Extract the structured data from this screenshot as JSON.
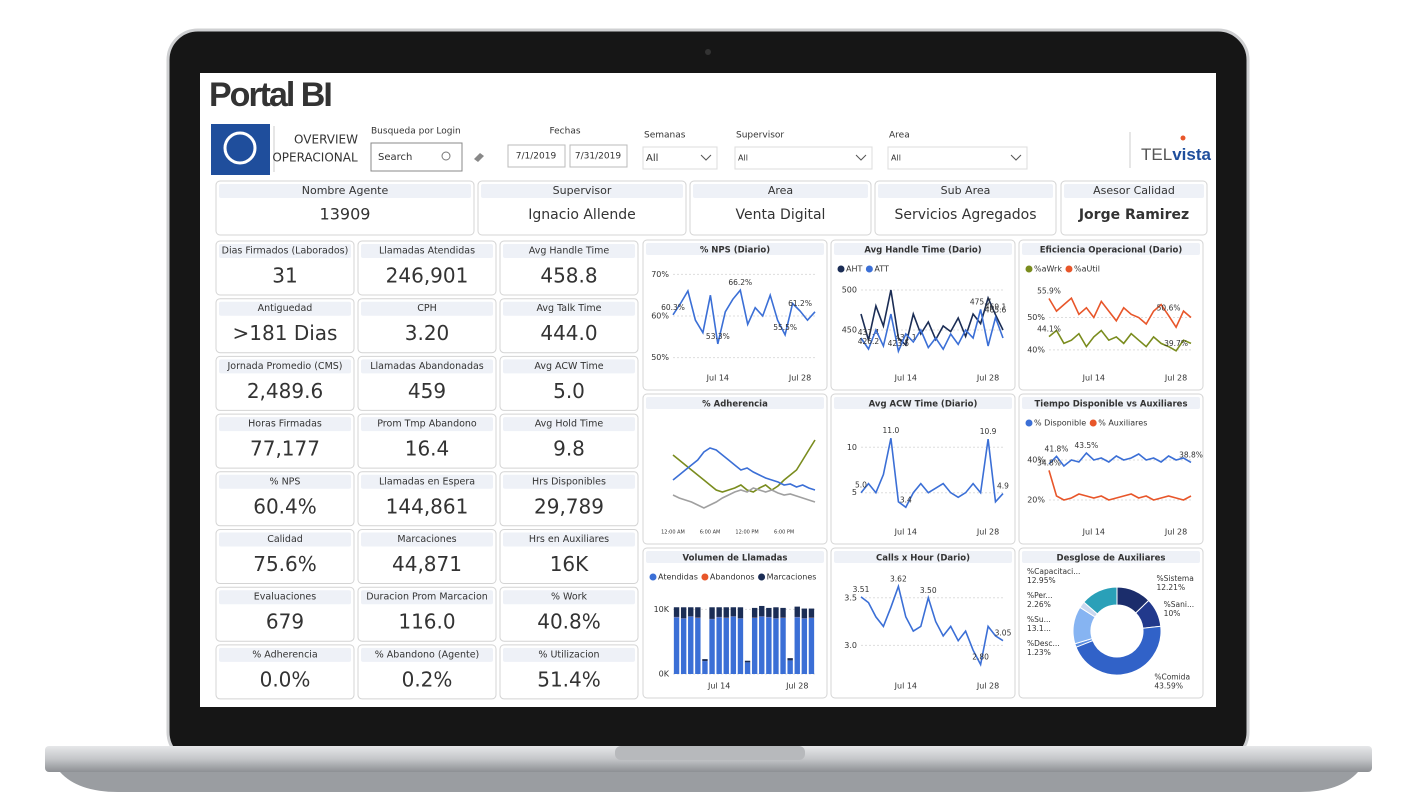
{
  "header": {
    "title": "Portal BI",
    "logo_line1": "OVERVIEW",
    "logo_line2": "OPERACIONAL",
    "search_label": "Busqueda por Login",
    "search_placeholder": "Search",
    "dates_label": "Fechas",
    "date_from": "7/1/2019",
    "date_to": "7/31/2019",
    "weeks_label": "Semanas",
    "weeks_value": "All",
    "supervisor_label": "Supervisor",
    "supervisor_value": "All",
    "area_label": "Area",
    "area_value": "All",
    "brand_a": "TEL",
    "brand_b": "vista"
  },
  "info_cards": [
    {
      "label": "Nombre Agente",
      "value": "13909"
    },
    {
      "label": "Supervisor",
      "value": "Ignacio Allende"
    },
    {
      "label": "Area",
      "value": "Venta Digital"
    },
    {
      "label": "Sub Area",
      "value": "Servicios Agregados"
    },
    {
      "label": "Asesor Calidad",
      "value": "Jorge Ramirez"
    }
  ],
  "kpis": [
    {
      "label": "Dias Firmados (Laborados)",
      "value": "31"
    },
    {
      "label": "Llamadas Atendidas",
      "value": "246,901"
    },
    {
      "label": "Avg Handle Time",
      "value": "458.8"
    },
    {
      "label": "Antiguedad",
      "value": ">181 Dias"
    },
    {
      "label": "CPH",
      "value": "3.20"
    },
    {
      "label": "Avg Talk Time",
      "value": "444.0"
    },
    {
      "label": "Jornada Promedio (CMS)",
      "value": "2,489.6"
    },
    {
      "label": "Llamadas Abandonadas",
      "value": "459"
    },
    {
      "label": "Avg ACW Time",
      "value": "5.0"
    },
    {
      "label": "Horas Firmadas",
      "value": "77,177"
    },
    {
      "label": "Prom Tmp Abandono",
      "value": "16.4"
    },
    {
      "label": "Avg Hold Time",
      "value": "9.8"
    },
    {
      "label": "% NPS",
      "value": "60.4%"
    },
    {
      "label": "Llamadas en Espera",
      "value": "144,861"
    },
    {
      "label": "Hrs Disponibles",
      "value": "29,789"
    },
    {
      "label": "Calidad",
      "value": "75.6%"
    },
    {
      "label": "Marcaciones",
      "value": "44,871"
    },
    {
      "label": "Hrs en Auxiliares",
      "value": "16K"
    },
    {
      "label": "Evaluaciones",
      "value": "679"
    },
    {
      "label": "Duracion Prom Marcacion",
      "value": "116.0"
    },
    {
      "label": "% Work",
      "value": "40.8%"
    },
    {
      "label": "% Adherencia",
      "value": "0.0%"
    },
    {
      "label": "% Abandono (Agente)",
      "value": "0.2%"
    },
    {
      "label": "% Utilizacion",
      "value": "51.4%"
    }
  ],
  "charts": [
    {
      "type": "line",
      "title": "% NPS (Diario)",
      "ylim": [
        48,
        72
      ],
      "yticks": [
        {
          "value": 50,
          "label": "50%"
        },
        {
          "value": 60,
          "label": "60%"
        },
        {
          "value": 70,
          "label": "70%"
        }
      ],
      "categories": [
        null,
        null,
        null,
        null,
        null,
        null,
        "Jul 14",
        null,
        null,
        null,
        null,
        null,
        null,
        null,
        null,
        null,
        null,
        "Jul 28",
        null,
        null
      ],
      "series": [
        {
          "color": "#3b6fd6",
          "values": [
            60.3,
            63,
            66,
            59,
            56,
            65,
            53.3,
            61,
            64,
            66.2,
            58,
            62,
            60,
            65,
            59,
            55.5,
            63,
            61.2,
            59,
            61
          ],
          "value_labels": [
            "60.3%",
            null,
            null,
            null,
            null,
            null,
            "53.3%",
            null,
            null,
            "66.2%",
            null,
            null,
            null,
            null,
            null,
            "55.5%",
            null,
            "61.2%",
            null,
            null
          ]
        }
      ]
    },
    {
      "type": "line",
      "title": "Avg Handle Time (Dario)",
      "ylim": [
        405,
        510
      ],
      "yticks": [
        450,
        500
      ],
      "categories": [
        null,
        null,
        null,
        null,
        null,
        null,
        "Jul 14",
        null,
        null,
        null,
        null,
        null,
        null,
        null,
        null,
        null,
        null,
        "Jul 28",
        null,
        null
      ],
      "series": [
        {
          "name": "AHT",
          "color": "#1b2d55",
          "values": [
            470,
            437.4,
            480,
            455,
            500,
            440,
            431.1,
            470,
            445,
            460,
            438,
            455,
            448,
            465,
            442,
            470,
            458,
            490,
            469.1,
            450
          ],
          "value_labels": [
            null,
            "437.4",
            null,
            null,
            null,
            null,
            "431.1",
            null,
            null,
            null,
            null,
            null,
            null,
            null,
            null,
            null,
            null,
            null,
            "469.1",
            null
          ]
        },
        {
          "name": "ATT",
          "color": "#3b6fd6",
          "values": [
            440,
            426.2,
            450,
            430,
            470,
            423.5,
            445,
            435,
            450,
            428,
            440,
            426,
            445,
            432,
            450,
            440,
            475.7,
            430,
            465.6,
            440
          ],
          "value_labels": [
            null,
            "426.2",
            null,
            null,
            null,
            "423.5",
            null,
            null,
            null,
            null,
            null,
            null,
            null,
            null,
            null,
            null,
            "475.7",
            null,
            "465.6",
            null
          ]
        }
      ]
    },
    {
      "type": "line",
      "title": "Eficiencia Operacional (Dario)",
      "ylim": [
        35,
        61
      ],
      "yticks": [
        {
          "value": 40,
          "label": "40%"
        },
        {
          "value": 50,
          "label": "50%"
        }
      ],
      "categories": [
        null,
        null,
        null,
        null,
        null,
        null,
        "Jul 14",
        null,
        null,
        null,
        null,
        null,
        null,
        null,
        null,
        null,
        null,
        "Jul 28",
        null,
        null
      ],
      "series": [
        {
          "name": "%aWrk",
          "color": "#7a8c1e",
          "values": [
            44.1,
            46,
            42,
            43,
            45,
            41,
            44,
            46,
            43,
            44,
            42,
            45,
            43,
            41,
            44,
            42,
            41,
            39.7,
            43,
            42
          ],
          "value_labels": [
            "44.1%",
            null,
            null,
            null,
            null,
            null,
            null,
            null,
            null,
            null,
            null,
            null,
            null,
            null,
            null,
            null,
            null,
            "39.7%",
            null,
            null
          ]
        },
        {
          "name": "%aUtil",
          "color": "#e8562a",
          "values": [
            55.9,
            52,
            54,
            56,
            51,
            53,
            50,
            55,
            52,
            49,
            53,
            51,
            50,
            48,
            52,
            54,
            50.6,
            47,
            52,
            50
          ],
          "value_labels": [
            "55.9%",
            null,
            null,
            null,
            null,
            null,
            null,
            null,
            null,
            null,
            null,
            null,
            null,
            null,
            null,
            null,
            "50.6%",
            null,
            null,
            null
          ]
        }
      ]
    },
    {
      "type": "line",
      "title": "% Adherencia",
      "ylim": [
        0,
        100
      ],
      "yticks": [],
      "categories": [
        "12:00 AM",
        null,
        null,
        null,
        null,
        null,
        "6:00 AM",
        null,
        null,
        null,
        null,
        null,
        "12:00 PM",
        null,
        null,
        null,
        null,
        null,
        "6:00 PM",
        null,
        null,
        null,
        null,
        null
      ],
      "series": [
        {
          "color": "#7a8c1e",
          "values": [
            65,
            60,
            55,
            50,
            45,
            40,
            35,
            30,
            28,
            30,
            32,
            35,
            30,
            28,
            32,
            35,
            30,
            34,
            40,
            45,
            50,
            60,
            70,
            80
          ]
        },
        {
          "color": "#3b6fd6",
          "values": [
            40,
            45,
            50,
            55,
            60,
            68,
            72,
            70,
            65,
            60,
            55,
            50,
            52,
            48,
            45,
            42,
            40,
            38,
            35,
            36,
            33,
            35,
            32,
            30
          ]
        },
        {
          "color": "#a0a0a0",
          "values": [
            25,
            22,
            20,
            18,
            15,
            12,
            15,
            18,
            22,
            25,
            28,
            30,
            28,
            32,
            30,
            28,
            30,
            27,
            25,
            26,
            24,
            22,
            20,
            18
          ]
        }
      ]
    },
    {
      "type": "line",
      "title": "Avg ACW Time (Diario)",
      "ylim": [
        2,
        13
      ],
      "yticks": [
        5,
        10
      ],
      "categories": [
        null,
        null,
        null,
        null,
        null,
        null,
        "Jul 14",
        null,
        null,
        null,
        null,
        null,
        null,
        null,
        null,
        null,
        null,
        "Jul 28",
        null,
        null
      ],
      "series": [
        {
          "color": "#3b6fd6",
          "values": [
            5.0,
            6,
            5,
            7,
            11.0,
            4,
            3.4,
            5,
            6,
            5,
            5.5,
            6,
            5,
            4.5,
            5,
            6,
            5,
            10.9,
            4,
            4.9
          ],
          "value_labels": [
            "5.0",
            null,
            null,
            null,
            "11.0",
            null,
            "3.4",
            null,
            null,
            null,
            null,
            null,
            null,
            null,
            null,
            null,
            null,
            "10.9",
            null,
            "4.9"
          ]
        }
      ]
    },
    {
      "type": "line",
      "title": "Tiempo Disponible vs Auxiliares",
      "ylim": [
        10,
        52
      ],
      "yticks": [
        {
          "value": 20,
          "label": "20%"
        },
        {
          "value": 40,
          "label": "40%"
        }
      ],
      "categories": [
        null,
        null,
        null,
        null,
        null,
        null,
        "Jul 14",
        null,
        null,
        null,
        null,
        null,
        null,
        null,
        null,
        null,
        null,
        "Jul 28",
        null,
        null
      ],
      "series": [
        {
          "name": "% Disponible",
          "color": "#3b6fd6",
          "values": [
            38,
            41.8,
            37,
            40,
            39,
            43.5,
            40,
            41,
            39,
            42,
            40,
            41,
            43,
            40,
            41,
            39,
            42,
            40,
            41,
            38.8
          ],
          "value_labels": [
            null,
            "41.8%",
            null,
            null,
            null,
            "43.5%",
            null,
            null,
            null,
            null,
            null,
            null,
            null,
            null,
            null,
            null,
            null,
            null,
            null,
            "38.8%"
          ]
        },
        {
          "name": "% Auxiliares",
          "color": "#e8562a",
          "values": [
            34.8,
            22,
            20,
            21,
            23,
            22,
            21,
            22,
            20,
            21,
            22,
            23,
            21,
            22,
            20,
            21,
            22,
            21,
            20,
            22
          ],
          "value_labels": [
            "34.8%",
            null,
            null,
            null,
            null,
            null,
            null,
            null,
            null,
            null,
            null,
            null,
            null,
            null,
            null,
            null,
            null,
            null,
            null,
            null
          ]
        }
      ]
    },
    {
      "type": "stacked-bar",
      "title": "Volumen de Llamadas",
      "ylim": [
        0,
        13000
      ],
      "yticks": [
        {
          "value": 0,
          "label": "0K"
        },
        {
          "value": 10000,
          "label": "10K"
        }
      ],
      "categories": [
        null,
        null,
        null,
        null,
        null,
        null,
        "Jul 14",
        null,
        null,
        null,
        null,
        null,
        null,
        null,
        null,
        null,
        null,
        "Jul 28",
        null,
        null
      ],
      "series": [
        {
          "name": "Atendidas",
          "color": "#3b6fd6",
          "values": [
            8800,
            8600,
            8900,
            8700,
            2000,
            8500,
            8800,
            8700,
            8900,
            8600,
            1800,
            8700,
            8900,
            8800,
            8600,
            8700,
            2100,
            8800,
            8600,
            8700
          ]
        },
        {
          "name": "Abandonos",
          "color": "#e8562a",
          "values": [
            30,
            25,
            28,
            30,
            5,
            26,
            29,
            27,
            30,
            24,
            4,
            28,
            30,
            27,
            25,
            29,
            6,
            28,
            26,
            27
          ]
        },
        {
          "name": "Marcaciones",
          "color": "#1b2d55",
          "values": [
            1500,
            1700,
            1400,
            1600,
            300,
            1800,
            1500,
            1600,
            1400,
            1700,
            250,
            1500,
            1600,
            1400,
            1700,
            1500,
            350,
            1600,
            1500,
            1400
          ]
        }
      ]
    },
    {
      "type": "line",
      "title": "Calls x Hour (Dario)",
      "ylim": [
        2.7,
        3.75
      ],
      "yticks": [
        {
          "value": 3,
          "label": "3.0"
        },
        3.5
      ],
      "categories": [
        null,
        null,
        null,
        null,
        null,
        null,
        "Jul 14",
        null,
        null,
        null,
        null,
        null,
        null,
        null,
        null,
        null,
        null,
        "Jul 28",
        null,
        null
      ],
      "series": [
        {
          "color": "#3b6fd6",
          "values": [
            3.51,
            3.45,
            3.3,
            3.2,
            3.4,
            3.62,
            3.3,
            3.15,
            3.2,
            3.5,
            3.25,
            3.1,
            3.2,
            3.05,
            3.15,
            2.95,
            2.8,
            3.2,
            3.1,
            3.05
          ],
          "value_labels": [
            "3.51",
            null,
            null,
            null,
            null,
            "3.62",
            null,
            null,
            null,
            "3.50",
            null,
            null,
            null,
            null,
            null,
            null,
            "2.80",
            null,
            null,
            "3.05"
          ]
        }
      ]
    },
    {
      "type": "donut",
      "title": "Desglose de Auxiliares",
      "categories": [
        "%Sistema",
        "%Sani...",
        "%Comida",
        "%Desc...",
        "%Su...",
        "%Per...",
        "%Capacitaci..."
      ],
      "values": [
        12.21,
        10,
        43.59,
        1.23,
        13.1,
        2.26,
        12.95
      ],
      "value_labels": [
        "12.21%",
        "10%",
        "43.59%",
        "1.23%",
        "13.1...",
        "2.26%",
        "12.95%"
      ],
      "colors": [
        "#1b2d6b",
        "#22398c",
        "#3162c8",
        "#5a8de0",
        "#86b4f2",
        "#c9d8f0",
        "#2aa0b8"
      ]
    }
  ]
}
